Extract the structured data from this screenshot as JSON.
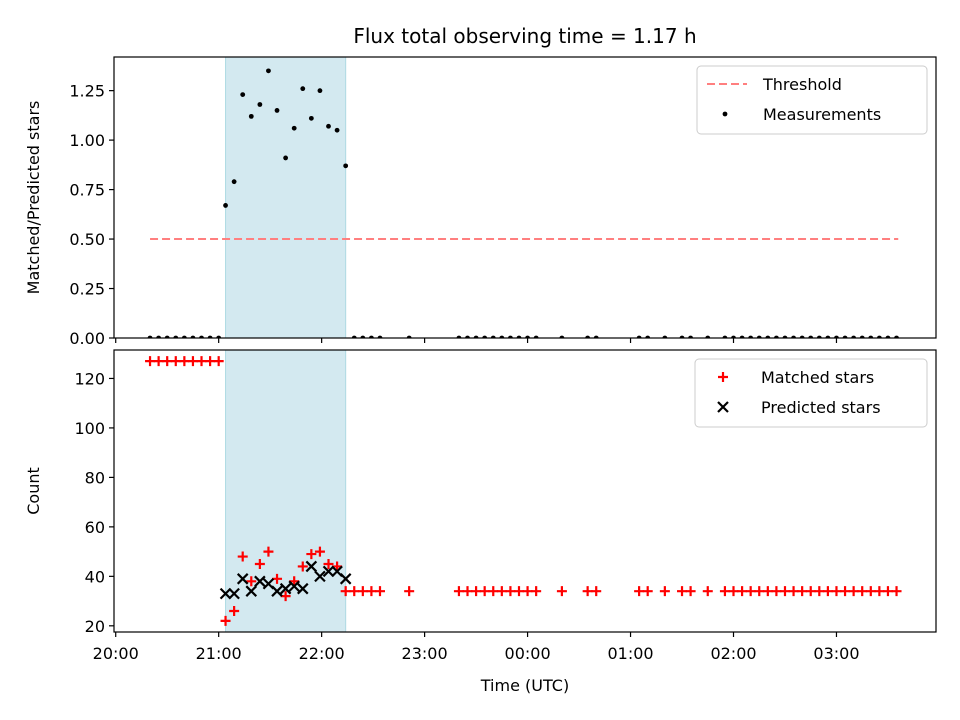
{
  "chart_data": [
    {
      "type": "scatter",
      "title": "Flux total observing time = 1.17 h",
      "xlabel": "",
      "ylabel": "Matched/Predicted stars",
      "ylim": [
        0,
        1.42
      ],
      "yticks": [
        "0.00",
        "0.25",
        "0.50",
        "0.75",
        "1.00",
        "1.25"
      ],
      "ytick_values": [
        0,
        0.25,
        0.5,
        0.75,
        1.0,
        1.25
      ],
      "xlim": [
        "19:59",
        "03:58"
      ],
      "shaded_interval": [
        "21:04",
        "22:14"
      ],
      "legend_position": "upper right",
      "series": [
        {
          "name": "Threshold",
          "kind": "dashed-line",
          "color": "#ff7f7f",
          "points": [
            [
              "20:20",
              0.5
            ],
            [
              "03:36",
              0.5
            ]
          ]
        },
        {
          "name": "Measurements",
          "kind": "dots",
          "color": "#000000",
          "points": [
            [
              "20:20",
              0
            ],
            [
              "20:25",
              0
            ],
            [
              "20:30",
              0
            ],
            [
              "20:35",
              0
            ],
            [
              "20:40",
              0
            ],
            [
              "20:45",
              0
            ],
            [
              "20:50",
              0
            ],
            [
              "20:55",
              0
            ],
            [
              "21:00",
              0
            ],
            [
              "21:04",
              0.67
            ],
            [
              "21:09",
              0.79
            ],
            [
              "21:14",
              1.23
            ],
            [
              "21:19",
              1.12
            ],
            [
              "21:24",
              1.18
            ],
            [
              "21:29",
              1.35
            ],
            [
              "21:34",
              1.15
            ],
            [
              "21:39",
              0.91
            ],
            [
              "21:44",
              1.06
            ],
            [
              "21:49",
              1.26
            ],
            [
              "21:54",
              1.11
            ],
            [
              "21:59",
              1.25
            ],
            [
              "22:04",
              1.07
            ],
            [
              "22:09",
              1.05
            ],
            [
              "22:14",
              0.87
            ],
            [
              "22:19",
              0
            ],
            [
              "22:24",
              0
            ],
            [
              "22:29",
              0
            ],
            [
              "22:34",
              0
            ],
            [
              "22:51",
              0
            ],
            [
              "23:20",
              0
            ],
            [
              "23:25",
              0
            ],
            [
              "23:30",
              0
            ],
            [
              "23:35",
              0
            ],
            [
              "23:40",
              0
            ],
            [
              "23:45",
              0
            ],
            [
              "23:50",
              0
            ],
            [
              "23:55",
              0
            ],
            [
              "00:00",
              0
            ],
            [
              "00:05",
              0
            ],
            [
              "00:20",
              0
            ],
            [
              "00:35",
              0
            ],
            [
              "00:40",
              0
            ],
            [
              "01:05",
              0
            ],
            [
              "01:10",
              0
            ],
            [
              "01:20",
              0
            ],
            [
              "01:30",
              0
            ],
            [
              "01:35",
              0
            ],
            [
              "01:45",
              0
            ],
            [
              "01:55",
              0
            ],
            [
              "02:00",
              0
            ],
            [
              "02:05",
              0
            ],
            [
              "02:10",
              0
            ],
            [
              "02:15",
              0
            ],
            [
              "02:20",
              0
            ],
            [
              "02:25",
              0
            ],
            [
              "02:30",
              0
            ],
            [
              "02:35",
              0
            ],
            [
              "02:40",
              0
            ],
            [
              "02:45",
              0
            ],
            [
              "02:50",
              0
            ],
            [
              "02:55",
              0
            ],
            [
              "03:00",
              0
            ],
            [
              "03:05",
              0
            ],
            [
              "03:10",
              0
            ],
            [
              "03:15",
              0
            ],
            [
              "03:20",
              0
            ],
            [
              "03:25",
              0
            ],
            [
              "03:30",
              0
            ],
            [
              "03:35",
              0
            ]
          ]
        }
      ]
    },
    {
      "type": "scatter",
      "title": "",
      "xlabel": "Time (UTC)",
      "ylabel": "Count",
      "ylim": [
        17.5,
        131.5
      ],
      "yticks": [
        "20",
        "40",
        "60",
        "80",
        "100",
        "120"
      ],
      "ytick_values": [
        20,
        40,
        60,
        80,
        100,
        120
      ],
      "xticks": [
        "20:00",
        "21:00",
        "22:00",
        "23:00",
        "00:00",
        "01:00",
        "02:00",
        "03:00"
      ],
      "xlim": [
        "19:59",
        "03:58"
      ],
      "shaded_interval": [
        "21:04",
        "22:14"
      ],
      "legend_position": "upper right",
      "series": [
        {
          "name": "Matched stars",
          "kind": "plus",
          "color": "#ff0000",
          "points": [
            [
              "20:20",
              127
            ],
            [
              "20:25",
              127
            ],
            [
              "20:30",
              127
            ],
            [
              "20:35",
              127
            ],
            [
              "20:40",
              127
            ],
            [
              "20:45",
              127
            ],
            [
              "20:50",
              127
            ],
            [
              "20:55",
              127
            ],
            [
              "21:00",
              127
            ],
            [
              "21:04",
              22
            ],
            [
              "21:09",
              26
            ],
            [
              "21:14",
              48
            ],
            [
              "21:19",
              38
            ],
            [
              "21:24",
              45
            ],
            [
              "21:29",
              50
            ],
            [
              "21:34",
              39
            ],
            [
              "21:39",
              32
            ],
            [
              "21:44",
              38
            ],
            [
              "21:49",
              44
            ],
            [
              "21:54",
              49
            ],
            [
              "21:59",
              50
            ],
            [
              "22:04",
              45
            ],
            [
              "22:09",
              44
            ],
            [
              "22:14",
              34
            ],
            [
              "22:19",
              34
            ],
            [
              "22:24",
              34
            ],
            [
              "22:29",
              34
            ],
            [
              "22:34",
              34
            ],
            [
              "22:51",
              34
            ],
            [
              "23:20",
              34
            ],
            [
              "23:25",
              34
            ],
            [
              "23:30",
              34
            ],
            [
              "23:35",
              34
            ],
            [
              "23:40",
              34
            ],
            [
              "23:45",
              34
            ],
            [
              "23:50",
              34
            ],
            [
              "23:55",
              34
            ],
            [
              "00:00",
              34
            ],
            [
              "00:05",
              34
            ],
            [
              "00:20",
              34
            ],
            [
              "00:35",
              34
            ],
            [
              "00:40",
              34
            ],
            [
              "01:05",
              34
            ],
            [
              "01:10",
              34
            ],
            [
              "01:20",
              34
            ],
            [
              "01:30",
              34
            ],
            [
              "01:35",
              34
            ],
            [
              "01:45",
              34
            ],
            [
              "01:55",
              34
            ],
            [
              "02:00",
              34
            ],
            [
              "02:05",
              34
            ],
            [
              "02:10",
              34
            ],
            [
              "02:15",
              34
            ],
            [
              "02:20",
              34
            ],
            [
              "02:25",
              34
            ],
            [
              "02:30",
              34
            ],
            [
              "02:35",
              34
            ],
            [
              "02:40",
              34
            ],
            [
              "02:45",
              34
            ],
            [
              "02:50",
              34
            ],
            [
              "02:55",
              34
            ],
            [
              "03:00",
              34
            ],
            [
              "03:05",
              34
            ],
            [
              "03:10",
              34
            ],
            [
              "03:15",
              34
            ],
            [
              "03:20",
              34
            ],
            [
              "03:25",
              34
            ],
            [
              "03:30",
              34
            ],
            [
              "03:35",
              34
            ]
          ]
        },
        {
          "name": "Predicted stars",
          "kind": "x",
          "color": "#000000",
          "points": [
            [
              "21:04",
              33
            ],
            [
              "21:09",
              33
            ],
            [
              "21:14",
              39
            ],
            [
              "21:19",
              34
            ],
            [
              "21:24",
              38
            ],
            [
              "21:29",
              37
            ],
            [
              "21:34",
              34
            ],
            [
              "21:39",
              35
            ],
            [
              "21:44",
              36
            ],
            [
              "21:49",
              35
            ],
            [
              "21:54",
              44
            ],
            [
              "21:59",
              40
            ],
            [
              "22:04",
              42
            ],
            [
              "22:09",
              42
            ],
            [
              "22:14",
              39
            ]
          ]
        }
      ]
    }
  ]
}
